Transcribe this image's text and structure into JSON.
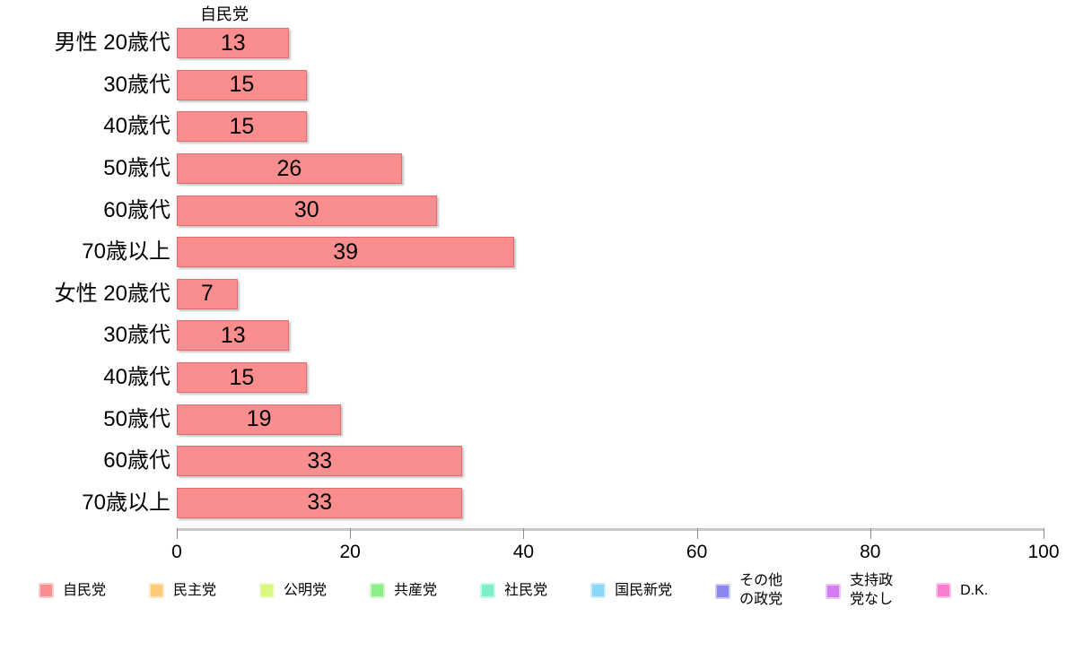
{
  "chart_data": {
    "type": "bar",
    "orientation": "horizontal",
    "title": "自民党",
    "categories": [
      "男性 20歳代",
      "30歳代",
      "40歳代",
      "50歳代",
      "60歳代",
      "70歳以上",
      "女性 20歳代",
      "30歳代",
      "40歳代",
      "50歳代",
      "60歳代",
      "70歳以上"
    ],
    "values": [
      13,
      15,
      15,
      26,
      30,
      39,
      7,
      13,
      15,
      19,
      33,
      33
    ],
    "xlabel": "",
    "ylabel": "",
    "xlim": [
      0,
      100
    ],
    "x_ticks": [
      0,
      20,
      40,
      60,
      80,
      100
    ],
    "grid": false,
    "value_labels": "inside-center",
    "bar_color": "#FA8E8E",
    "bar_border_color": "#E06F6F",
    "axis_line_color": "#C9C9C9",
    "tick_color": "#8C8C8C",
    "legend_position": "bottom",
    "legend": [
      {
        "label": "自民党",
        "color": "#F98E8E"
      },
      {
        "label": "民主党",
        "color": "#FBCB7B"
      },
      {
        "label": "公明党",
        "color": "#D8F87E"
      },
      {
        "label": "共産党",
        "color": "#8BEE8B"
      },
      {
        "label": "社民党",
        "color": "#7DF0CB"
      },
      {
        "label": "国民新党",
        "color": "#8AD8F8"
      },
      {
        "label": "その他\nの政党",
        "color": "#8C87F0"
      },
      {
        "label": "支持政\n党なし",
        "color": "#D67CF2"
      },
      {
        "label": "D.K.",
        "color": "#FB7DD0"
      }
    ]
  }
}
